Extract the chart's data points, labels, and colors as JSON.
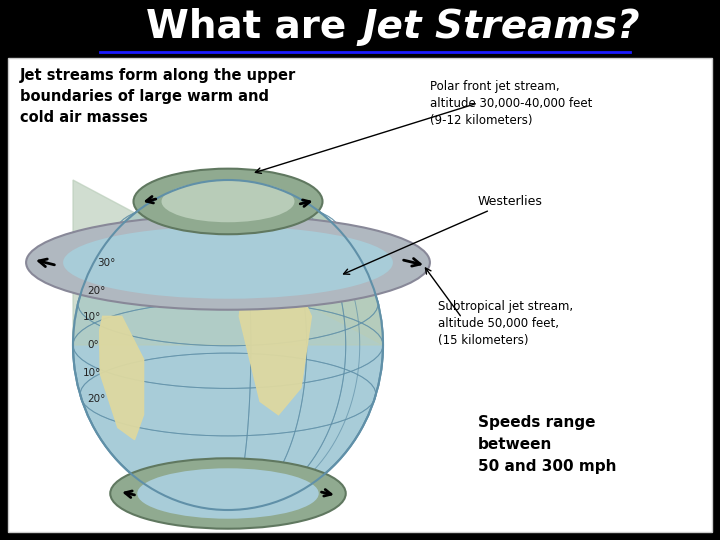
{
  "bg_color": "#000000",
  "content_bg": "#ffffff",
  "title_normal": "What are ",
  "title_italic": "Jet Streams?",
  "title_color": "#ffffff",
  "underline_color": "#1a1aff",
  "subtitle": "Jet streams form along the upper\nboundaries of large warm and\ncold air masses",
  "ann1": "Polar front jet stream,\naltitude 30,000-40,000 feet\n(9-12 kilometers)",
  "ann2": "Westerlies",
  "ann3": "Subtropical jet stream,\naltitude 50,000 feet,\n(15 kilometers)",
  "speed": "Speeds range\nbetween\n50 and 300 mph",
  "ocean": "#a8ccd8",
  "land": "#ddd8a0",
  "polar_tint": "#b8ccb8",
  "ring_gray_outer": "#b0b8c0",
  "ring_gray_inner": "#d0d8e0",
  "ring_green_outer": "#90aa90",
  "ring_green_inner": "#b8ccb8",
  "figsize": [
    7.2,
    5.4
  ],
  "dpi": 100
}
